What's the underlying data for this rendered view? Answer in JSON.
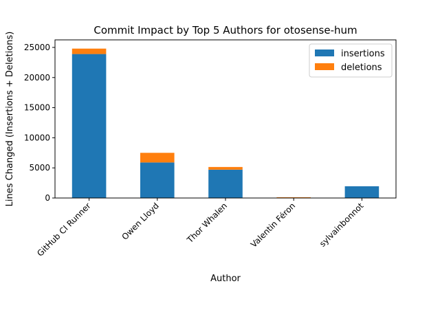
{
  "chart_data": {
    "type": "bar",
    "stacked": true,
    "title": "Commit Impact by Top 5 Authors for otosense-hum",
    "xlabel": "Author",
    "ylabel": "Lines Changed (Insertions + Deletions)",
    "categories": [
      "GitHub CI Runner",
      "Owen Lloyd",
      "Thor Whalen",
      "Valentin Féron",
      "sylvainbonnot"
    ],
    "series": [
      {
        "name": "insertions",
        "color": "#1f77b4",
        "values": [
          23900,
          5900,
          4700,
          50,
          1950
        ]
      },
      {
        "name": "deletions",
        "color": "#ff7f0e",
        "values": [
          900,
          1600,
          450,
          70,
          0
        ]
      }
    ],
    "ylim": [
      0,
      26250
    ],
    "yticks": [
      0,
      5000,
      10000,
      15000,
      20000,
      25000
    ],
    "ytick_labels": [
      "0",
      "5000",
      "10000",
      "15000",
      "20000",
      "25000"
    ],
    "grid": false,
    "legend_position": "top-right"
  }
}
